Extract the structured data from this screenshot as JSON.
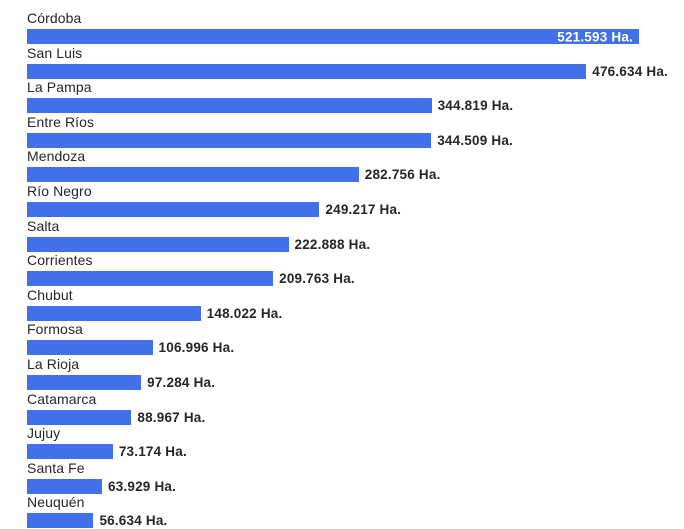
{
  "chart_data": {
    "type": "bar",
    "orientation": "horizontal",
    "title": "",
    "xlabel": "",
    "ylabel": "",
    "unit_suffix": "Ha.",
    "number_format": "thousands separated by dot",
    "xlim": [
      0,
      521593
    ],
    "grid": false,
    "legend": false,
    "bar_color": "#4170E8",
    "text_color": "#262626",
    "inside_value_color": "#FFFFFF",
    "categories": [
      "Córdoba",
      "San Luis",
      "La Pampa",
      "Entre Ríos",
      "Mendoza",
      "Río Negro",
      "Salta",
      "Corrientes",
      "Chubut",
      "Formosa",
      "La Rioja",
      "Catamarca",
      "Jujuy",
      "Santa Fe",
      "Neuquén"
    ],
    "values": [
      521593,
      476634,
      344819,
      344509,
      282756,
      249217,
      222888,
      209763,
      148022,
      106996,
      97284,
      88967,
      73174,
      63929,
      56634
    ],
    "rows": [
      {
        "name": "Córdoba",
        "value": 521593,
        "label": "521.593 Ha.",
        "label_position": "inside"
      },
      {
        "name": "San Luis",
        "value": 476634,
        "label": "476.634 Ha.",
        "label_position": "outside"
      },
      {
        "name": "La Pampa",
        "value": 344819,
        "label": "344.819 Ha.",
        "label_position": "outside"
      },
      {
        "name": "Entre Ríos",
        "value": 344509,
        "label": "344.509 Ha.",
        "label_position": "outside"
      },
      {
        "name": "Mendoza",
        "value": 282756,
        "label": "282.756 Ha.",
        "label_position": "outside"
      },
      {
        "name": "Río Negro",
        "value": 249217,
        "label": "249.217 Ha.",
        "label_position": "outside"
      },
      {
        "name": "Salta",
        "value": 222888,
        "label": "222.888 Ha.",
        "label_position": "outside"
      },
      {
        "name": "Corrientes",
        "value": 209763,
        "label": "209.763 Ha.",
        "label_position": "outside"
      },
      {
        "name": "Chubut",
        "value": 148022,
        "label": "148.022 Ha.",
        "label_position": "outside"
      },
      {
        "name": "Formosa",
        "value": 106996,
        "label": "106.996 Ha.",
        "label_position": "outside"
      },
      {
        "name": "La Rioja",
        "value": 97284,
        "label": "97.284 Ha.",
        "label_position": "outside"
      },
      {
        "name": "Catamarca",
        "value": 88967,
        "label": "88.967 Ha.",
        "label_position": "outside"
      },
      {
        "name": "Jujuy",
        "value": 73174,
        "label": "73.174 Ha.",
        "label_position": "outside"
      },
      {
        "name": "Santa Fe",
        "value": 63929,
        "label": "63.929 Ha.",
        "label_position": "outside"
      },
      {
        "name": "Neuquén",
        "value": 56634,
        "label": "56.634 Ha.",
        "label_position": "outside"
      }
    ]
  }
}
